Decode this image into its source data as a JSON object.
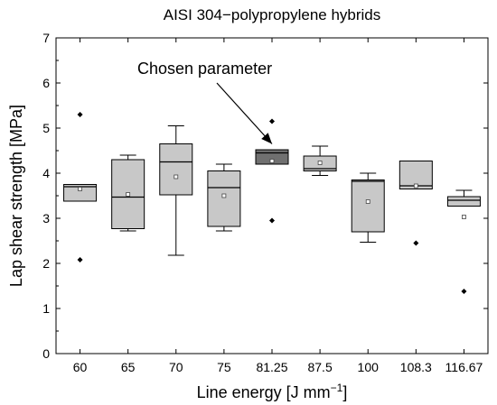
{
  "chart_data": {
    "type": "box",
    "title": "AISI 304−polypropylene hybrids",
    "xlabel": "Line energy [J mm",
    "xlabel_sup": "−1",
    "xlabel_close": "]",
    "ylabel": "Lap shear strength [MPa]",
    "ylim": [
      0,
      7
    ],
    "yticks": [
      0,
      1,
      2,
      3,
      4,
      5,
      6,
      7
    ],
    "categories": [
      "60",
      "65",
      "70",
      "75",
      "81.25",
      "87.5",
      "100",
      "108.3",
      "116.67"
    ],
    "boxes": [
      {
        "category": "60",
        "whisker_low": 3.38,
        "q1": 3.38,
        "median": 3.7,
        "q3": 3.75,
        "whisker_high": 3.75,
        "mean": 3.65,
        "outliers": [
          5.3,
          2.08
        ]
      },
      {
        "category": "65",
        "whisker_low": 2.72,
        "q1": 2.77,
        "median": 3.47,
        "q3": 4.3,
        "whisker_high": 4.4,
        "mean": 3.53,
        "outliers": []
      },
      {
        "category": "70",
        "whisker_low": 2.18,
        "q1": 3.52,
        "median": 4.25,
        "q3": 4.65,
        "whisker_high": 5.05,
        "mean": 3.92,
        "outliers": []
      },
      {
        "category": "75",
        "whisker_low": 2.72,
        "q1": 2.82,
        "median": 3.68,
        "q3": 4.05,
        "whisker_high": 4.2,
        "mean": 3.5,
        "outliers": []
      },
      {
        "category": "81.25",
        "whisker_low": 4.2,
        "q1": 4.2,
        "median": 4.45,
        "q3": 4.52,
        "whisker_high": 4.52,
        "mean": 4.27,
        "outliers": [
          5.15,
          2.95
        ],
        "highlight": true
      },
      {
        "category": "87.5",
        "whisker_low": 3.95,
        "q1": 4.05,
        "median": 4.1,
        "q3": 4.38,
        "whisker_high": 4.6,
        "mean": 4.23,
        "outliers": []
      },
      {
        "category": "100",
        "whisker_low": 2.47,
        "q1": 2.7,
        "median": 3.82,
        "q3": 3.85,
        "whisker_high": 4.0,
        "mean": 3.37,
        "outliers": []
      },
      {
        "category": "108.3",
        "whisker_low": 3.65,
        "q1": 3.65,
        "median": 3.72,
        "q3": 4.27,
        "whisker_high": 4.27,
        "mean": 3.72,
        "outliers": [
          2.45
        ]
      },
      {
        "category": "116.67",
        "whisker_low": 3.27,
        "q1": 3.27,
        "median": 3.4,
        "q3": 3.48,
        "whisker_high": 3.62,
        "mean": 3.03,
        "outliers": [
          1.38
        ]
      }
    ],
    "annotation": {
      "text": "Chosen parameter",
      "target_category": "81.25",
      "target_value": 4.65
    },
    "colors": {
      "box": "#c8c8c8",
      "highlight_box": "#707070",
      "stroke": "#000000"
    },
    "grid": false,
    "legend": "none"
  }
}
